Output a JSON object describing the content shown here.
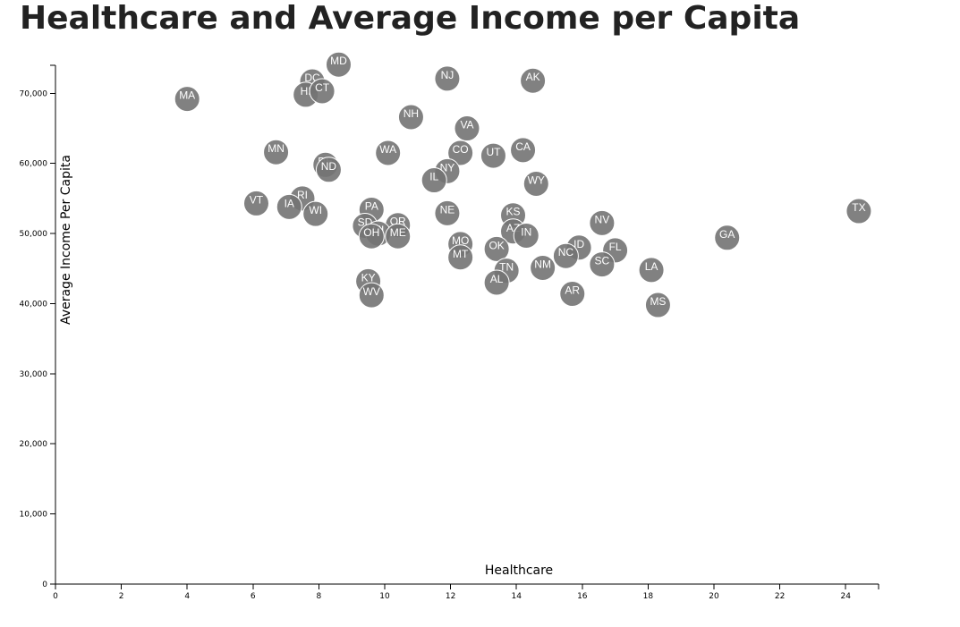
{
  "page": {
    "title": "Healthcare and Average Income per Capita"
  },
  "colors": {
    "marker": "#737373",
    "marker_text": "#ffffff",
    "title": "#222222"
  },
  "chart_data": {
    "type": "scatter",
    "title": "Healthcare and Average Income per Capita",
    "xlabel": "Healthcare",
    "ylabel": "Average Income Per Capita",
    "xlim": [
      0,
      25
    ],
    "ylim": [
      0,
      74000
    ],
    "x_ticks": [
      0,
      2,
      4,
      6,
      8,
      10,
      12,
      14,
      16,
      18,
      20,
      22,
      24
    ],
    "x_tick_labels": [
      "0",
      "2",
      "4",
      "6",
      "8",
      "10",
      "12",
      "14",
      "16",
      "18",
      "20",
      "22",
      "24"
    ],
    "y_ticks": [
      0,
      10000,
      20000,
      30000,
      40000,
      50000,
      60000,
      70000
    ],
    "y_tick_labels": [
      "0",
      "10,000",
      "20,000",
      "30,000",
      "40,000",
      "50,000",
      "60,000",
      "70,000"
    ],
    "grid": false,
    "legend": "none",
    "points": [
      {
        "label": "MA",
        "x": 4.0,
        "y": 69200
      },
      {
        "label": "MD",
        "x": 8.6,
        "y": 74100
      },
      {
        "label": "DC",
        "x": 7.8,
        "y": 71700
      },
      {
        "label": "HI",
        "x": 7.6,
        "y": 69800
      },
      {
        "label": "CT",
        "x": 8.1,
        "y": 70300
      },
      {
        "label": "NJ",
        "x": 11.9,
        "y": 72100
      },
      {
        "label": "AK",
        "x": 14.5,
        "y": 71800
      },
      {
        "label": "NH",
        "x": 10.8,
        "y": 66600
      },
      {
        "label": "VA",
        "x": 12.5,
        "y": 65000
      },
      {
        "label": "MN",
        "x": 6.7,
        "y": 61600
      },
      {
        "label": "WA",
        "x": 10.1,
        "y": 61500
      },
      {
        "label": "CO",
        "x": 12.3,
        "y": 61500
      },
      {
        "label": "CA",
        "x": 14.2,
        "y": 61900
      },
      {
        "label": "UT",
        "x": 13.3,
        "y": 61100
      },
      {
        "label": "DE",
        "x": 8.2,
        "y": 59800
      },
      {
        "label": "ND",
        "x": 8.3,
        "y": 59100
      },
      {
        "label": "NY",
        "x": 11.9,
        "y": 58900
      },
      {
        "label": "IL",
        "x": 11.5,
        "y": 57600
      },
      {
        "label": "WY",
        "x": 14.6,
        "y": 57100
      },
      {
        "label": "VT",
        "x": 6.1,
        "y": 54300
      },
      {
        "label": "RI",
        "x": 7.5,
        "y": 55000
      },
      {
        "label": "IA",
        "x": 7.1,
        "y": 53800
      },
      {
        "label": "WI",
        "x": 7.9,
        "y": 52800
      },
      {
        "label": "PA",
        "x": 9.6,
        "y": 53400
      },
      {
        "label": "NE",
        "x": 11.9,
        "y": 52900
      },
      {
        "label": "KS",
        "x": 13.9,
        "y": 52600
      },
      {
        "label": "SD",
        "x": 9.4,
        "y": 51100
      },
      {
        "label": "OR",
        "x": 10.4,
        "y": 51200
      },
      {
        "label": "MI",
        "x": 9.8,
        "y": 50000
      },
      {
        "label": "OH",
        "x": 9.6,
        "y": 49600
      },
      {
        "label": "ME",
        "x": 10.4,
        "y": 49600
      },
      {
        "label": "AZ",
        "x": 13.9,
        "y": 50300
      },
      {
        "label": "IN",
        "x": 14.3,
        "y": 49700
      },
      {
        "label": "NV",
        "x": 16.6,
        "y": 51500
      },
      {
        "label": "TX",
        "x": 24.4,
        "y": 53200
      },
      {
        "label": "GA",
        "x": 20.4,
        "y": 49400
      },
      {
        "label": "MO",
        "x": 12.3,
        "y": 48500
      },
      {
        "label": "OK",
        "x": 13.4,
        "y": 47800
      },
      {
        "label": "MT",
        "x": 12.3,
        "y": 46600
      },
      {
        "label": "ID",
        "x": 15.9,
        "y": 48000
      },
      {
        "label": "NC",
        "x": 15.5,
        "y": 46800
      },
      {
        "label": "FL",
        "x": 17.0,
        "y": 47600
      },
      {
        "label": "SC",
        "x": 16.6,
        "y": 45600
      },
      {
        "label": "NM",
        "x": 14.8,
        "y": 45100
      },
      {
        "label": "TN",
        "x": 13.7,
        "y": 44700
      },
      {
        "label": "LA",
        "x": 18.1,
        "y": 44800
      },
      {
        "label": "AL",
        "x": 13.4,
        "y": 43000
      },
      {
        "label": "KY",
        "x": 9.5,
        "y": 43200
      },
      {
        "label": "WV",
        "x": 9.6,
        "y": 41200
      },
      {
        "label": "AR",
        "x": 15.7,
        "y": 41400
      },
      {
        "label": "MS",
        "x": 18.3,
        "y": 39800
      }
    ]
  }
}
